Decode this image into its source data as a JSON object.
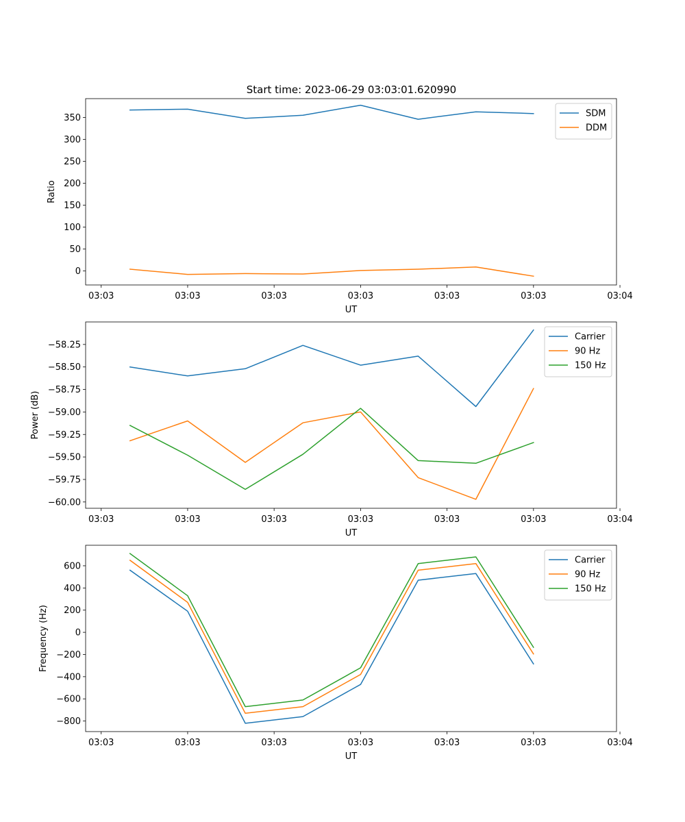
{
  "figure": {
    "title": "Start time: 2023-06-29 03:03:01.620990"
  },
  "colors": {
    "blue": "#1f77b4",
    "orange": "#ff7f0e",
    "green": "#2ca02c"
  },
  "chart_data": [
    {
      "type": "line",
      "title": "Start time: 2023-06-29 03:03:01.620990",
      "xlabel": "UT",
      "ylabel": "Ratio",
      "x": [
        1,
        2,
        3,
        4,
        5,
        6,
        7,
        8
      ],
      "xlim": [
        0.23,
        9.44
      ],
      "ylim": [
        -32,
        393
      ],
      "x_ticks": [
        {
          "pos": 0.5,
          "label": "03:03"
        },
        {
          "pos": 2.0,
          "label": "03:03"
        },
        {
          "pos": 3.5,
          "label": "03:03"
        },
        {
          "pos": 5.0,
          "label": "03:03"
        },
        {
          "pos": 6.5,
          "label": "03:03"
        },
        {
          "pos": 8.0,
          "label": "03:03"
        },
        {
          "pos": 9.5,
          "label": "03:04"
        }
      ],
      "y_ticks": [
        0,
        50,
        100,
        150,
        200,
        250,
        300,
        350
      ],
      "series": [
        {
          "name": "SDM",
          "color": "#1f77b4",
          "values": [
            367,
            369,
            348,
            355,
            378,
            346,
            363,
            359
          ]
        },
        {
          "name": "DDM",
          "color": "#ff7f0e",
          "values": [
            4,
            -8,
            -6,
            -7,
            1,
            4,
            9,
            -12
          ]
        }
      ],
      "legend": "top-right",
      "grid": false
    },
    {
      "type": "line",
      "title": "",
      "xlabel": "UT",
      "ylabel": "Power (dB)",
      "x": [
        1,
        2,
        3,
        4,
        5,
        6,
        7,
        8
      ],
      "xlim": [
        0.23,
        9.44
      ],
      "ylim": [
        -60.07,
        -58.0
      ],
      "x_ticks": [
        {
          "pos": 0.5,
          "label": "03:03"
        },
        {
          "pos": 2.0,
          "label": "03:03"
        },
        {
          "pos": 3.5,
          "label": "03:03"
        },
        {
          "pos": 5.0,
          "label": "03:03"
        },
        {
          "pos": 6.5,
          "label": "03:03"
        },
        {
          "pos": 8.0,
          "label": "03:03"
        },
        {
          "pos": 9.5,
          "label": "03:04"
        }
      ],
      "y_ticks": [
        -60.0,
        -59.75,
        -59.5,
        -59.25,
        -59.0,
        -58.75,
        -58.5,
        -58.25
      ],
      "y_tick_labels": [
        "−60.00",
        "−59.75",
        "−59.50",
        "−59.25",
        "−59.00",
        "−58.75",
        "−58.50",
        "−58.25"
      ],
      "series": [
        {
          "name": "Carrier",
          "color": "#1f77b4",
          "values": [
            -58.5,
            -58.6,
            -58.52,
            -58.26,
            -58.48,
            -58.38,
            -58.94,
            -58.09
          ]
        },
        {
          "name": "90 Hz",
          "color": "#ff7f0e",
          "values": [
            -59.32,
            -59.1,
            -59.56,
            -59.12,
            -59.0,
            -59.73,
            -59.97,
            -58.74
          ]
        },
        {
          "name": "150 Hz",
          "color": "#2ca02c",
          "values": [
            -59.15,
            -59.48,
            -59.86,
            -59.47,
            -58.96,
            -59.54,
            -59.57,
            -59.34
          ]
        }
      ],
      "legend": "top-right",
      "grid": false
    },
    {
      "type": "line",
      "title": "",
      "xlabel": "UT",
      "ylabel": "Frequency (Hz)",
      "x": [
        1,
        2,
        3,
        4,
        5,
        6,
        7,
        8
      ],
      "xlim": [
        0.23,
        9.44
      ],
      "ylim": [
        -895,
        785
      ],
      "x_ticks": [
        {
          "pos": 0.5,
          "label": "03:03"
        },
        {
          "pos": 2.0,
          "label": "03:03"
        },
        {
          "pos": 3.5,
          "label": "03:03"
        },
        {
          "pos": 5.0,
          "label": "03:03"
        },
        {
          "pos": 6.5,
          "label": "03:03"
        },
        {
          "pos": 8.0,
          "label": "03:03"
        },
        {
          "pos": 9.5,
          "label": "03:04"
        }
      ],
      "y_ticks": [
        -800,
        -600,
        -400,
        -200,
        0,
        200,
        400,
        600
      ],
      "y_tick_labels": [
        "−800",
        "−600",
        "−400",
        "−200",
        "0",
        "200",
        "400",
        "600"
      ],
      "series": [
        {
          "name": "Carrier",
          "color": "#1f77b4",
          "values": [
            560,
            190,
            -820,
            -760,
            -470,
            470,
            530,
            -285
          ]
        },
        {
          "name": "90 Hz",
          "color": "#ff7f0e",
          "values": [
            650,
            270,
            -730,
            -670,
            -380,
            560,
            620,
            -195
          ]
        },
        {
          "name": "150 Hz",
          "color": "#2ca02c",
          "values": [
            710,
            330,
            -670,
            -610,
            -320,
            620,
            680,
            -135
          ]
        }
      ],
      "legend": "top-right",
      "grid": false
    }
  ]
}
